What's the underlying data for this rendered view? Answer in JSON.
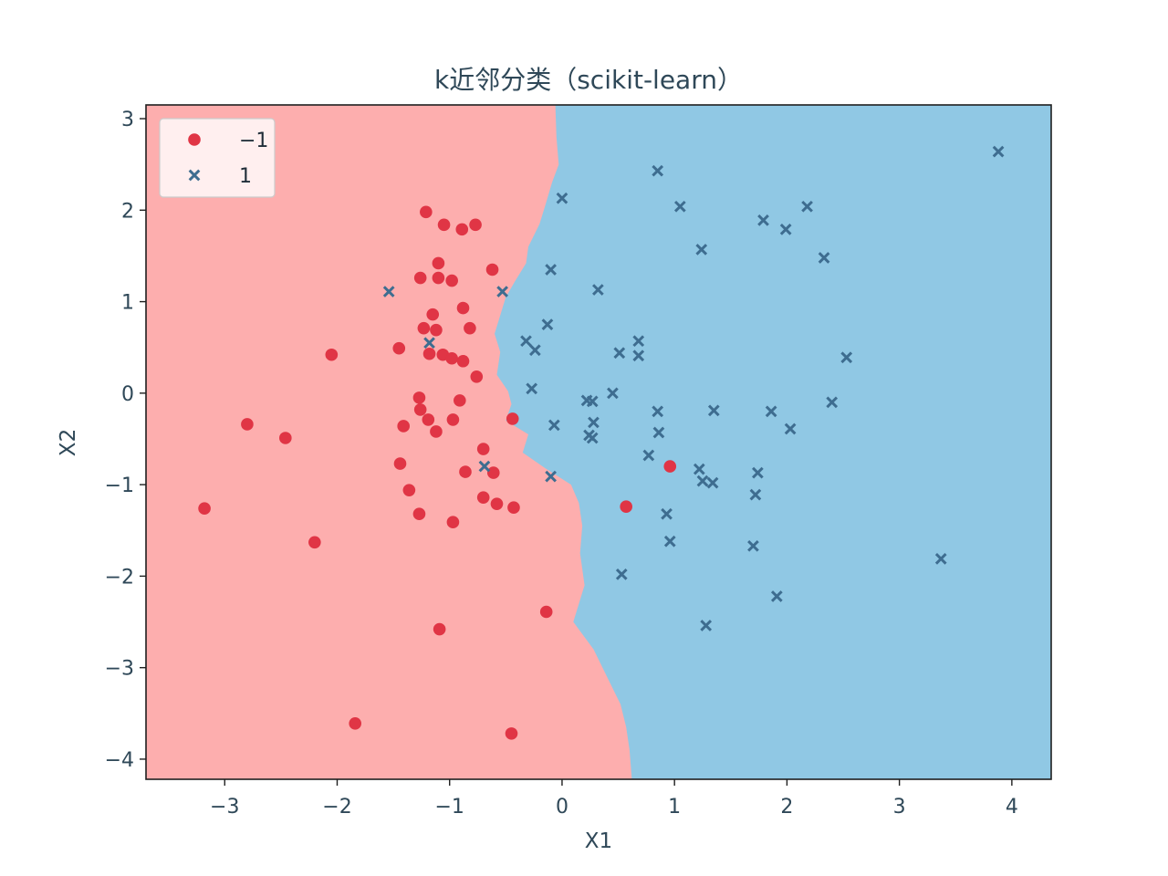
{
  "chart_data": {
    "type": "scatter",
    "title": "k近邻分类（scikit-learn）",
    "xlabel": "X1",
    "ylabel": "X2",
    "xlim": [
      -3.7,
      4.35
    ],
    "ylim": [
      -4.22,
      3.15
    ],
    "x_ticks": [
      -3,
      -2,
      -1,
      0,
      1,
      2,
      3,
      4
    ],
    "x_tick_labels": [
      "−3",
      "−2",
      "−1",
      "0",
      "1",
      "2",
      "3",
      "4"
    ],
    "y_ticks": [
      -4,
      -3,
      -2,
      -1,
      0,
      1,
      2,
      3
    ],
    "y_tick_labels": [
      "−4",
      "−3",
      "−2",
      "−1",
      "0",
      "1",
      "2",
      "3"
    ],
    "grid": false,
    "legend_position": "top-left",
    "colors": {
      "class_neg_marker": "#e03545",
      "class_pos_marker": "#3e6d90",
      "region_neg": "#fdaeae",
      "region_pos": "#90c8e4",
      "text": "#2f4858"
    },
    "decision_boundary": [
      [
        -0.06,
        3.15
      ],
      [
        -0.05,
        2.8
      ],
      [
        -0.03,
        2.5
      ],
      [
        -0.09,
        2.3
      ],
      [
        -0.15,
        2.05
      ],
      [
        -0.2,
        1.85
      ],
      [
        -0.3,
        1.6
      ],
      [
        -0.32,
        1.42
      ],
      [
        -0.42,
        1.22
      ],
      [
        -0.5,
        1.05
      ],
      [
        -0.55,
        0.85
      ],
      [
        -0.6,
        0.65
      ],
      [
        -0.55,
        0.45
      ],
      [
        -0.58,
        0.2
      ],
      [
        -0.48,
        0.02
      ],
      [
        -0.45,
        -0.12
      ],
      [
        -0.5,
        -0.3
      ],
      [
        -0.3,
        -0.45
      ],
      [
        -0.35,
        -0.65
      ],
      [
        -0.15,
        -0.82
      ],
      [
        0.08,
        -1.0
      ],
      [
        0.15,
        -1.2
      ],
      [
        0.18,
        -1.45
      ],
      [
        0.16,
        -1.75
      ],
      [
        0.2,
        -2.1
      ],
      [
        0.1,
        -2.5
      ],
      [
        0.28,
        -2.8
      ],
      [
        0.42,
        -3.15
      ],
      [
        0.52,
        -3.4
      ],
      [
        0.57,
        -3.65
      ],
      [
        0.6,
        -3.9
      ],
      [
        0.62,
        -4.22
      ]
    ],
    "series": [
      {
        "name": "−1",
        "marker": "circle",
        "points": [
          [
            -1.21,
            1.98
          ],
          [
            -1.05,
            1.84
          ],
          [
            -0.77,
            1.84
          ],
          [
            -0.89,
            1.79
          ],
          [
            -1.26,
            1.26
          ],
          [
            -1.1,
            1.42
          ],
          [
            -1.1,
            1.26
          ],
          [
            -0.98,
            1.23
          ],
          [
            -0.62,
            1.35
          ],
          [
            -0.88,
            0.93
          ],
          [
            -1.15,
            0.86
          ],
          [
            -0.82,
            0.71
          ],
          [
            -1.23,
            0.71
          ],
          [
            -1.12,
            0.69
          ],
          [
            -2.05,
            0.42
          ],
          [
            -1.45,
            0.49
          ],
          [
            -1.18,
            0.43
          ],
          [
            -1.06,
            0.42
          ],
          [
            -0.98,
            0.38
          ],
          [
            -0.88,
            0.35
          ],
          [
            -0.76,
            0.18
          ],
          [
            -1.27,
            -0.05
          ],
          [
            -0.91,
            -0.08
          ],
          [
            -1.26,
            -0.18
          ],
          [
            -1.19,
            -0.29
          ],
          [
            -0.97,
            -0.29
          ],
          [
            -1.41,
            -0.36
          ],
          [
            -1.12,
            -0.42
          ],
          [
            -0.44,
            -0.28
          ],
          [
            -2.8,
            -0.34
          ],
          [
            -2.46,
            -0.49
          ],
          [
            -0.7,
            -0.61
          ],
          [
            -1.44,
            -0.77
          ],
          [
            -0.86,
            -0.86
          ],
          [
            -0.61,
            -0.87
          ],
          [
            -1.36,
            -1.06
          ],
          [
            -0.7,
            -1.14
          ],
          [
            -0.58,
            -1.21
          ],
          [
            -0.43,
            -1.25
          ],
          [
            -3.18,
            -1.26
          ],
          [
            -1.27,
            -1.32
          ],
          [
            -0.97,
            -1.41
          ],
          [
            -2.2,
            -1.63
          ],
          [
            0.57,
            -1.24
          ],
          [
            0.96,
            -0.8
          ],
          [
            -0.14,
            -2.39
          ],
          [
            -1.09,
            -2.58
          ],
          [
            -1.84,
            -3.61
          ],
          [
            -0.45,
            -3.72
          ]
        ]
      },
      {
        "name": "1",
        "marker": "x",
        "points": [
          [
            3.88,
            2.64
          ],
          [
            0.85,
            2.43
          ],
          [
            0.0,
            2.13
          ],
          [
            1.05,
            2.04
          ],
          [
            2.18,
            2.04
          ],
          [
            1.79,
            1.89
          ],
          [
            1.99,
            1.79
          ],
          [
            1.24,
            1.57
          ],
          [
            2.33,
            1.48
          ],
          [
            -0.1,
            1.35
          ],
          [
            -1.54,
            1.11
          ],
          [
            -0.53,
            1.11
          ],
          [
            0.32,
            1.13
          ],
          [
            -0.13,
            0.75
          ],
          [
            0.68,
            0.57
          ],
          [
            -1.18,
            0.55
          ],
          [
            -0.32,
            0.57
          ],
          [
            -0.24,
            0.47
          ],
          [
            0.51,
            0.44
          ],
          [
            0.68,
            0.41
          ],
          [
            2.53,
            0.39
          ],
          [
            -0.27,
            0.05
          ],
          [
            0.45,
            0.0
          ],
          [
            0.22,
            -0.08
          ],
          [
            0.27,
            -0.09
          ],
          [
            2.4,
            -0.1
          ],
          [
            0.85,
            -0.2
          ],
          [
            1.35,
            -0.19
          ],
          [
            1.86,
            -0.2
          ],
          [
            -0.07,
            -0.35
          ],
          [
            0.28,
            -0.32
          ],
          [
            2.03,
            -0.39
          ],
          [
            0.86,
            -0.43
          ],
          [
            0.24,
            -0.46
          ],
          [
            0.27,
            -0.49
          ],
          [
            0.77,
            -0.68
          ],
          [
            -0.69,
            -0.8
          ],
          [
            1.22,
            -0.83
          ],
          [
            1.74,
            -0.87
          ],
          [
            -0.1,
            -0.91
          ],
          [
            1.25,
            -0.96
          ],
          [
            1.34,
            -0.98
          ],
          [
            1.72,
            -1.11
          ],
          [
            0.93,
            -1.32
          ],
          [
            0.96,
            -1.62
          ],
          [
            1.7,
            -1.67
          ],
          [
            3.37,
            -1.81
          ],
          [
            0.53,
            -1.98
          ],
          [
            1.91,
            -2.22
          ],
          [
            1.28,
            -2.54
          ]
        ]
      }
    ]
  }
}
